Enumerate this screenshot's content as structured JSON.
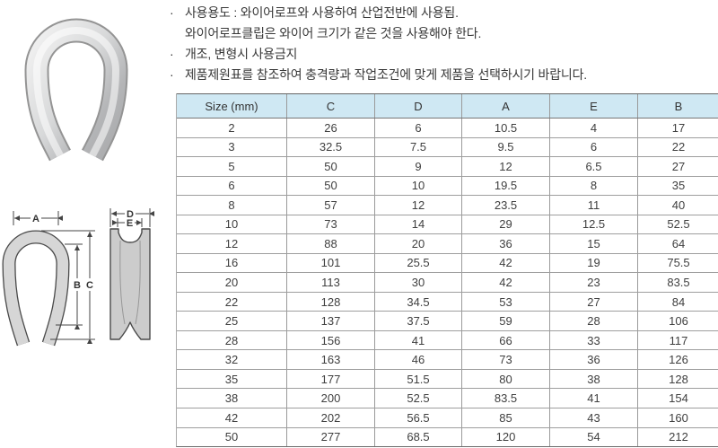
{
  "page": {
    "background": "#ffffff"
  },
  "notes": {
    "bullet": "·",
    "lines": [
      {
        "bullet": true,
        "text": "사용용도 : 와이어로프와 사용하여 산업전반에 사용됨."
      },
      {
        "bullet": false,
        "text": "와이어로프클립은 와이어 크기가 같은 것을 사용해야 한다."
      },
      {
        "bullet": true,
        "text": "개조, 변형시 사용금지"
      },
      {
        "bullet": true,
        "text": "제품제원표를 참조하여 충격량과 작업조건에 맞게 제품을 선택하시기 바랍니다."
      }
    ]
  },
  "diagram": {
    "labels": {
      "width_top": "A",
      "inner_height": "B",
      "overall_height": "C",
      "outer_width": "D",
      "inner_width": "E"
    }
  },
  "table": {
    "headers": [
      "Size (mm)",
      "C",
      "D",
      "A",
      "E",
      "B"
    ],
    "rows": [
      [
        "2",
        "26",
        "6",
        "10.5",
        "4",
        "17"
      ],
      [
        "3",
        "32.5",
        "7.5",
        "9.5",
        "6",
        "22"
      ],
      [
        "5",
        "50",
        "9",
        "12",
        "6.5",
        "27"
      ],
      [
        "6",
        "50",
        "10",
        "19.5",
        "8",
        "35"
      ],
      [
        "8",
        "57",
        "12",
        "23.5",
        "11",
        "40"
      ],
      [
        "10",
        "73",
        "14",
        "29",
        "12.5",
        "52.5"
      ],
      [
        "12",
        "88",
        "20",
        "36",
        "15",
        "64"
      ],
      [
        "16",
        "101",
        "25.5",
        "42",
        "19",
        "75.5"
      ],
      [
        "20",
        "113",
        "30",
        "42",
        "23",
        "83.5"
      ],
      [
        "22",
        "128",
        "34.5",
        "53",
        "27",
        "84"
      ],
      [
        "25",
        "137",
        "37.5",
        "59",
        "28",
        "106"
      ],
      [
        "28",
        "156",
        "41",
        "66",
        "33",
        "117"
      ],
      [
        "32",
        "163",
        "46",
        "73",
        "36",
        "126"
      ],
      [
        "35",
        "177",
        "51.5",
        "80",
        "38",
        "128"
      ],
      [
        "38",
        "200",
        "52.5",
        "83.5",
        "41",
        "154"
      ],
      [
        "42",
        "202",
        "56.5",
        "85",
        "43",
        "160"
      ],
      [
        "50",
        "277",
        "68.5",
        "120",
        "54",
        "212"
      ]
    ],
    "colors": {
      "header_bg": "#cfe8f3",
      "grid": "#9a9a9a",
      "strong_line": "#666666",
      "text": "#3f3f3f"
    }
  }
}
